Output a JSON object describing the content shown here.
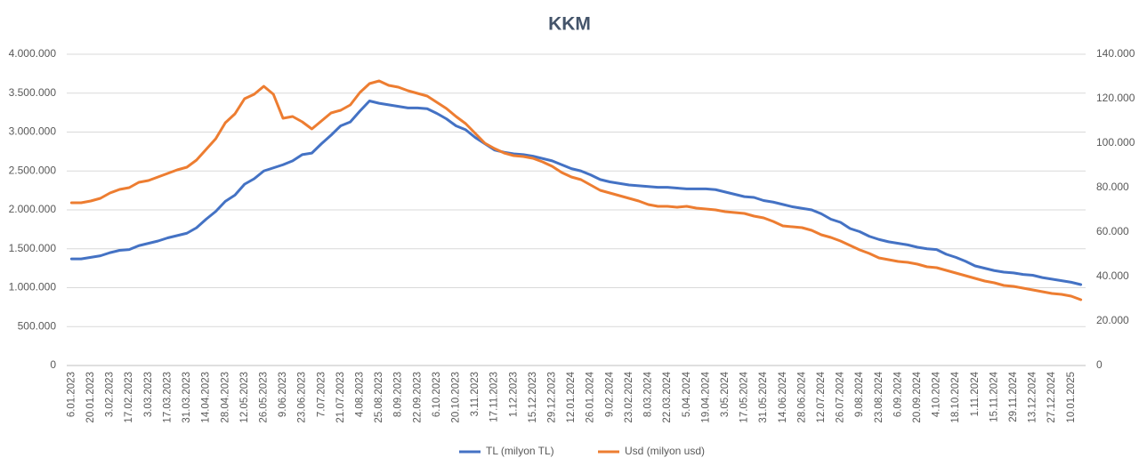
{
  "chart_data": {
    "type": "line",
    "title": "KKM",
    "categories": [
      "6.01.2023",
      null,
      "20.01.2023",
      null,
      "3.02.2023",
      null,
      "17.02.2023",
      null,
      "3.03.2023",
      null,
      "17.03.2023",
      null,
      "31.03.2023",
      null,
      "14.04.2023",
      null,
      "28.04.2023",
      null,
      "12.05.2023",
      null,
      "26.05.2023",
      null,
      "9.06.2023",
      null,
      "23.06.2023",
      null,
      "7.07.2023",
      null,
      "21.07.2023",
      null,
      "4.08.2023",
      null,
      "25.08.2023",
      null,
      "8.09.2023",
      null,
      "22.09.2023",
      null,
      "6.10.2023",
      null,
      "20.10.2023",
      null,
      "3.11.2023",
      null,
      "17.11.2023",
      null,
      "1.12.2023",
      null,
      "15.12.2023",
      null,
      "29.12.2023",
      null,
      "12.01.2024",
      null,
      "26.01.2024",
      null,
      "9.02.2024",
      null,
      "23.02.2024",
      null,
      "8.03.2024",
      null,
      "22.03.2024",
      null,
      "5.04.2024",
      null,
      "19.04.2024",
      null,
      "3.05.2024",
      null,
      "17.05.2024",
      null,
      "31.05.2024",
      null,
      "14.06.2024",
      null,
      "28.06.2024",
      null,
      "12.07.2024",
      null,
      "26.07.2024",
      null,
      "9.08.2024",
      null,
      "23.08.2024",
      null,
      "6.09.2024",
      null,
      "20.09.2024",
      null,
      "4.10.2024",
      null,
      "18.10.2024",
      null,
      "1.11.2024",
      null,
      "15.11.2024",
      null,
      "29.11.2024",
      null,
      "13.12.2024",
      null,
      "27.12.2024",
      null,
      "10.01.2025",
      null
    ],
    "series": [
      {
        "name": "TL (milyon TL)",
        "color": "#4472c4",
        "values": [
          1370000,
          1370000,
          1390000,
          1410000,
          1450000,
          1480000,
          1490000,
          1540000,
          1570000,
          1600000,
          1640000,
          1670000,
          1700000,
          1770000,
          1880000,
          1980000,
          2110000,
          2190000,
          2330000,
          2400000,
          2500000,
          2540000,
          2580000,
          2630000,
          2710000,
          2730000,
          2850000,
          2960000,
          3080000,
          3130000,
          3270000,
          3400000,
          3370000,
          3350000,
          3330000,
          3310000,
          3310000,
          3300000,
          3240000,
          3170000,
          3080000,
          3030000,
          2930000,
          2850000,
          2770000,
          2740000,
          2720000,
          2710000,
          2690000,
          2660000,
          2630000,
          2580000,
          2530000,
          2500000,
          2450000,
          2390000,
          2360000,
          2340000,
          2320000,
          2310000,
          2300000,
          2290000,
          2290000,
          2280000,
          2270000,
          2270000,
          2270000,
          2260000,
          2230000,
          2200000,
          2170000,
          2160000,
          2120000,
          2100000,
          2070000,
          2040000,
          2020000,
          2000000,
          1950000,
          1880000,
          1840000,
          1760000,
          1720000,
          1660000,
          1620000,
          1590000,
          1570000,
          1550000,
          1520000,
          1500000,
          1490000,
          1430000,
          1390000,
          1340000,
          1280000,
          1250000,
          1220000,
          1200000,
          1190000,
          1170000,
          1160000,
          1130000,
          1110000,
          1090000,
          1070000,
          1040000
        ]
      },
      {
        "name": "Usd (milyon usd)",
        "color": "#ed7d31",
        "axis": "y2",
        "values": [
          73200,
          73200,
          74000,
          75200,
          77600,
          79200,
          80000,
          82400,
          83200,
          84800,
          86400,
          88000,
          89200,
          92400,
          97200,
          102000,
          109200,
          113200,
          120000,
          122000,
          125600,
          122000,
          111200,
          112000,
          109600,
          106400,
          110000,
          113600,
          114800,
          117200,
          122800,
          126800,
          128000,
          126000,
          125200,
          123600,
          122400,
          121200,
          118400,
          115600,
          112000,
          108800,
          104400,
          100000,
          97600,
          95600,
          94400,
          94000,
          93200,
          91600,
          89600,
          86800,
          84800,
          83600,
          81200,
          78800,
          77600,
          76400,
          75200,
          74000,
          72400,
          71600,
          71600,
          71200,
          71600,
          70800,
          70400,
          70000,
          69200,
          68800,
          68400,
          67200,
          66400,
          64800,
          62800,
          62400,
          62000,
          60800,
          58800,
          57600,
          56000,
          54000,
          52000,
          50400,
          48400,
          47600,
          46800,
          46400,
          45600,
          44400,
          44000,
          42800,
          41600,
          40400,
          39200,
          38000,
          37200,
          36000,
          35600,
          34800,
          34000,
          33200,
          32400,
          32000,
          31200,
          29600
        ]
      }
    ],
    "ylim": [
      0,
      4000000
    ],
    "yticks": [
      0,
      {
        "value": 500000,
        "label": "500.000"
      },
      {
        "value": 1000000,
        "label": "1.000.000"
      },
      {
        "value": 1500000,
        "label": "1.500.000"
      },
      {
        "value": 2000000,
        "label": "2.000.000"
      },
      {
        "value": 2500000,
        "label": "2.500.000"
      },
      {
        "value": 3000000,
        "label": "3.000.000"
      },
      {
        "value": 3500000,
        "label": "3.500.000"
      },
      {
        "value": 4000000,
        "label": "4.000.000"
      }
    ],
    "y2lim": [
      0,
      140000
    ],
    "y2ticks": [
      0,
      {
        "value": 20000,
        "label": "20.000"
      },
      {
        "value": 40000,
        "label": "40.000"
      },
      {
        "value": 60000,
        "label": "60.000"
      },
      {
        "value": 80000,
        "label": "80.000"
      },
      {
        "value": 100000,
        "label": "100.000"
      },
      {
        "value": 120000,
        "label": "120.000"
      },
      {
        "value": 140000,
        "label": "140.000"
      }
    ],
    "grid": true,
    "legend": "bottom"
  }
}
